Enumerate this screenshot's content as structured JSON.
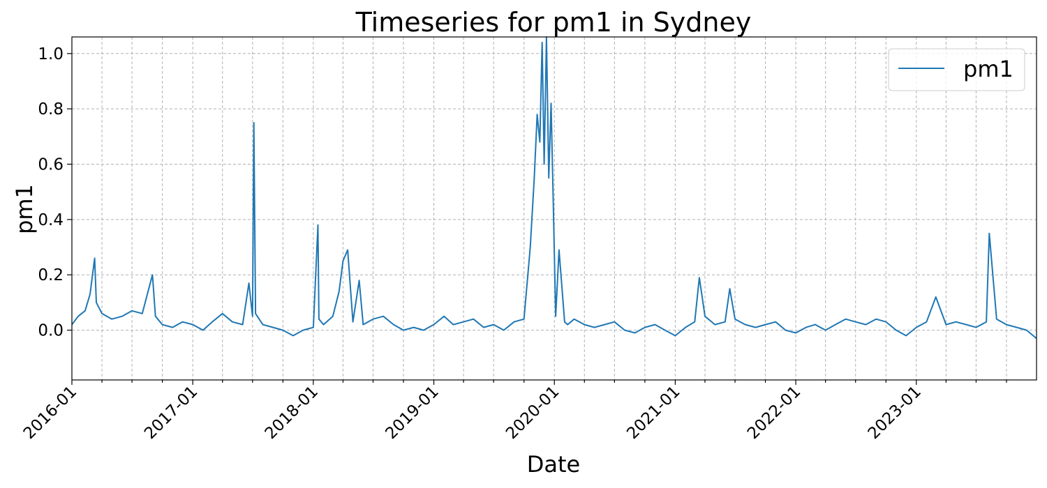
{
  "chart_data": {
    "type": "line",
    "title": "Timeseries for pm1 in Sydney",
    "xlabel": "Date",
    "ylabel": "pm1",
    "xlim": [
      "2016-01-01",
      "2023-12-31"
    ],
    "ylim": [
      -0.18,
      1.06
    ],
    "x_tick_labels": [
      "2016-01",
      "2017-01",
      "2018-01",
      "2019-01",
      "2020-01",
      "2021-01",
      "2022-01",
      "2023-01"
    ],
    "y_tick_labels": [
      "0.0",
      "0.2",
      "0.4",
      "0.6",
      "0.8",
      "1.0"
    ],
    "y_tick_values": [
      0.0,
      0.2,
      0.4,
      0.6,
      0.8,
      1.0
    ],
    "grid": true,
    "legend_position": "top-right",
    "series": [
      {
        "name": "pm1",
        "color": "#1f77b4",
        "x": [
          "2016-01-01",
          "2016-01-20",
          "2016-02-10",
          "2016-02-25",
          "2016-03-10",
          "2016-03-15",
          "2016-04-01",
          "2016-05-01",
          "2016-06-01",
          "2016-07-01",
          "2016-08-01",
          "2016-09-01",
          "2016-09-10",
          "2016-10-01",
          "2016-11-01",
          "2016-12-01",
          "2017-01-01",
          "2017-02-01",
          "2017-03-01",
          "2017-04-01",
          "2017-05-01",
          "2017-06-01",
          "2017-06-20",
          "2017-07-01",
          "2017-07-05",
          "2017-07-10",
          "2017-08-01",
          "2017-09-01",
          "2017-10-01",
          "2017-11-01",
          "2017-12-01",
          "2018-01-01",
          "2018-01-15",
          "2018-01-18",
          "2018-02-01",
          "2018-03-01",
          "2018-03-20",
          "2018-04-01",
          "2018-04-15",
          "2018-05-01",
          "2018-05-20",
          "2018-06-01",
          "2018-07-01",
          "2018-08-01",
          "2018-09-01",
          "2018-10-01",
          "2018-11-01",
          "2018-12-01",
          "2019-01-01",
          "2019-02-01",
          "2019-03-01",
          "2019-04-01",
          "2019-05-01",
          "2019-06-01",
          "2019-07-01",
          "2019-08-01",
          "2019-09-01",
          "2019-10-01",
          "2019-10-20",
          "2019-11-01",
          "2019-11-10",
          "2019-11-18",
          "2019-11-25",
          "2019-12-01",
          "2019-12-08",
          "2019-12-15",
          "2019-12-22",
          "2019-12-28",
          "2020-01-05",
          "2020-01-15",
          "2020-02-01",
          "2020-02-10",
          "2020-03-01",
          "2020-04-01",
          "2020-05-01",
          "2020-06-01",
          "2020-07-01",
          "2020-08-01",
          "2020-09-01",
          "2020-10-01",
          "2020-11-01",
          "2020-12-01",
          "2021-01-01",
          "2021-02-01",
          "2021-03-01",
          "2021-03-15",
          "2021-04-01",
          "2021-05-01",
          "2021-06-01",
          "2021-06-15",
          "2021-07-01",
          "2021-08-01",
          "2021-09-01",
          "2021-10-01",
          "2021-11-01",
          "2021-12-01",
          "2022-01-01",
          "2022-02-01",
          "2022-03-01",
          "2022-04-01",
          "2022-05-01",
          "2022-06-01",
          "2022-07-01",
          "2022-08-01",
          "2022-09-01",
          "2022-10-01",
          "2022-11-01",
          "2022-12-01",
          "2023-01-01",
          "2023-02-01",
          "2023-03-01",
          "2023-04-01",
          "2023-05-01",
          "2023-06-01",
          "2023-07-01",
          "2023-08-01",
          "2023-08-10",
          "2023-09-01",
          "2023-10-01",
          "2023-11-01",
          "2023-12-01",
          "2023-12-31"
        ],
        "y": [
          0.02,
          0.05,
          0.07,
          0.13,
          0.26,
          0.1,
          0.06,
          0.04,
          0.05,
          0.07,
          0.06,
          0.2,
          0.05,
          0.02,
          0.01,
          0.03,
          0.02,
          0.0,
          0.03,
          0.06,
          0.03,
          0.02,
          0.17,
          0.05,
          0.75,
          0.06,
          0.02,
          0.01,
          0.0,
          -0.02,
          0.0,
          0.01,
          0.38,
          0.04,
          0.02,
          0.05,
          0.14,
          0.25,
          0.29,
          0.03,
          0.18,
          0.02,
          0.04,
          0.05,
          0.02,
          0.0,
          0.01,
          0.0,
          0.02,
          0.05,
          0.02,
          0.03,
          0.04,
          0.01,
          0.02,
          0.0,
          0.03,
          0.04,
          0.3,
          0.55,
          0.78,
          0.68,
          1.04,
          0.6,
          1.06,
          0.55,
          0.82,
          0.5,
          0.05,
          0.29,
          0.03,
          0.02,
          0.04,
          0.02,
          0.01,
          0.02,
          0.03,
          0.0,
          -0.01,
          0.01,
          0.02,
          0.0,
          -0.02,
          0.01,
          0.03,
          0.19,
          0.05,
          0.02,
          0.03,
          0.15,
          0.04,
          0.02,
          0.01,
          0.02,
          0.03,
          0.0,
          -0.01,
          0.01,
          0.02,
          0.0,
          0.02,
          0.04,
          0.03,
          0.02,
          0.04,
          0.03,
          0.0,
          -0.02,
          0.01,
          0.03,
          0.12,
          0.02,
          0.03,
          0.02,
          0.01,
          0.03,
          0.35,
          0.04,
          0.02,
          0.01,
          0.0,
          -0.03
        ]
      }
    ]
  }
}
